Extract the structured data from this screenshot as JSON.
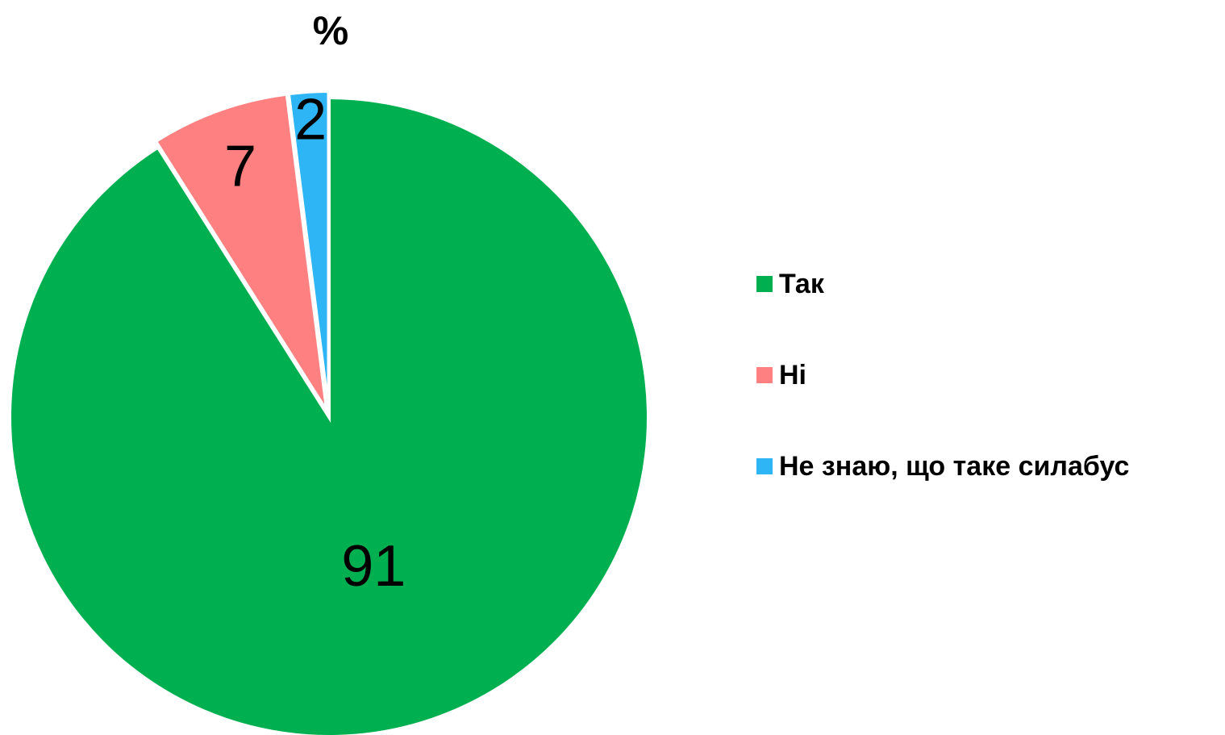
{
  "chart_data": {
    "type": "pie",
    "title": "%",
    "categories": [
      "Так",
      "Ні",
      "Не знаю, що таке силабус"
    ],
    "values": [
      91,
      7,
      2
    ],
    "colors": [
      "#00b050",
      "#ff8080",
      "#2db5f5"
    ],
    "legend": "right"
  }
}
